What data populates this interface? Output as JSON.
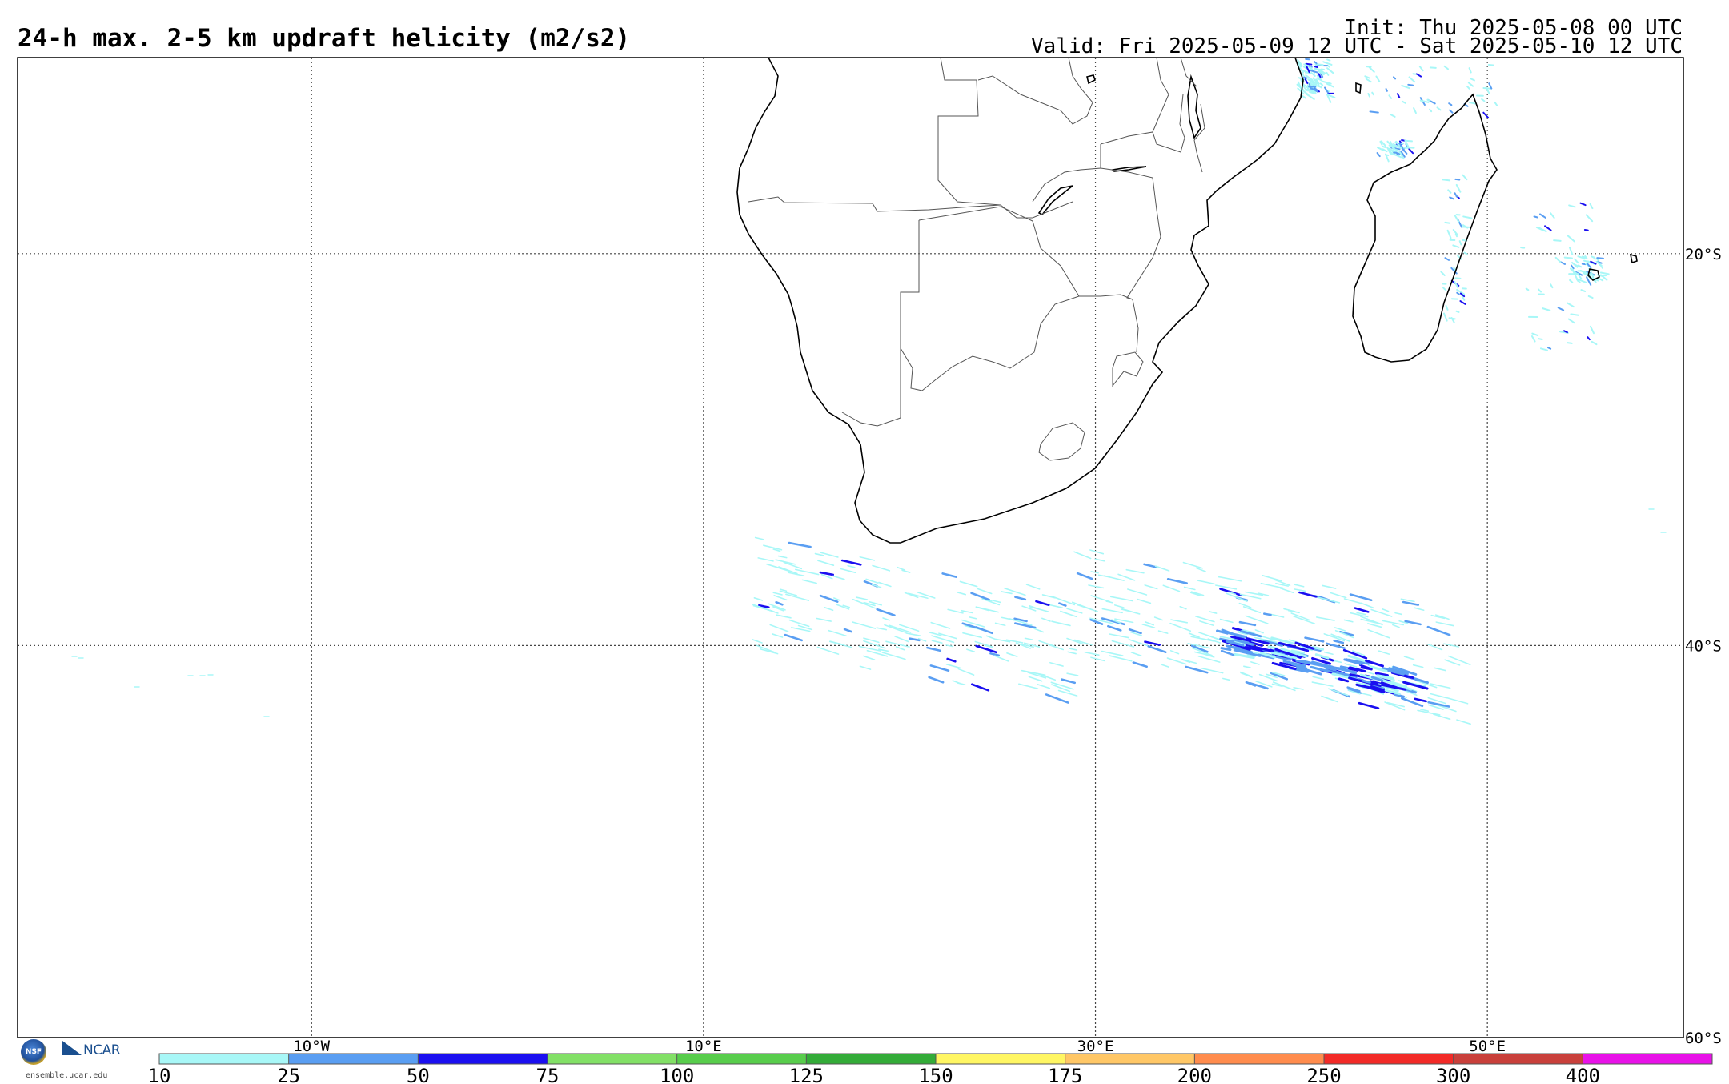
{
  "header": {
    "title": "24-h max. 2-5 km updraft helicity (m2/s2)",
    "init": "Init: Thu 2025-05-08 00 UTC",
    "valid": "Valid: Fri 2025-05-09 12 UTC - Sat 2025-05-10 12 UTC"
  },
  "map": {
    "lon_range": [
      -25,
      60
    ],
    "lat_range": [
      -60,
      -10
    ],
    "lon_gridlines": [
      {
        "lon": -10,
        "label": "10°W"
      },
      {
        "lon": 10,
        "label": "10°E"
      },
      {
        "lon": 30,
        "label": "30°E"
      },
      {
        "lon": 50,
        "label": "50°E"
      }
    ],
    "lat_gridlines": [
      {
        "lat": -20,
        "label": "20°S"
      },
      {
        "lat": -40,
        "label": "40°S"
      },
      {
        "lat": -60,
        "label": "60°S"
      }
    ],
    "helicity_swaths": [
      {
        "region": "south-of-africa",
        "lon": [
          13,
          43
        ],
        "lat": [
          -37,
          -46
        ],
        "max_class": 50
      },
      {
        "region": "madagascar-mozambique-channel",
        "lon": [
          35,
          57
        ],
        "lat": [
          -10,
          -24
        ],
        "max_class": 50
      }
    ]
  },
  "colorbar": {
    "labels": [
      "10",
      "25",
      "50",
      "75",
      "100",
      "125",
      "150",
      "175",
      "200",
      "250",
      "300",
      "400"
    ],
    "colors": [
      "#a8f7f7",
      "#5a9ef2",
      "#1a0ff0",
      "#82e066",
      "#58cd4c",
      "#33ab38",
      "#fff663",
      "#ffc766",
      "#ff8c4d",
      "#f22a27",
      "#c9403b",
      "#e812e8"
    ]
  },
  "logos": {
    "nsf_text": "NSF",
    "ncar_text": "NCAR",
    "url": "ensemble.ucar.edu"
  }
}
